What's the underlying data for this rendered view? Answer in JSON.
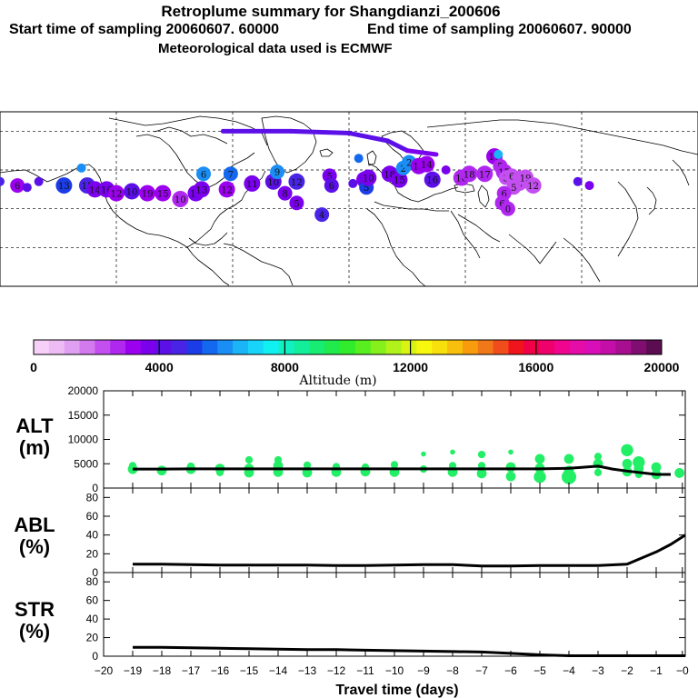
{
  "header": {
    "title": "Retroplume summary for Shangdianzi_200606",
    "start_label": "Start time of sampling 20060607. 60000",
    "end_label": "End time of sampling 20060607. 90000",
    "met_label": "Meteorological data used is ECMWF"
  },
  "colorbar": {
    "label": "Altitude (m)",
    "tick_labels": [
      "0",
      "4000",
      "8000",
      "12000",
      "16000",
      "20000"
    ],
    "min": 0,
    "max": 20000,
    "colors": [
      "#f7d0f7",
      "#eebbf5",
      "#e0a0f2",
      "#d27aee",
      "#c44ff0",
      "#b027f0",
      "#9b00ef",
      "#7a00ee",
      "#5c10e8",
      "#4a24e6",
      "#1c3ce8",
      "#1468f0",
      "#1a8ef5",
      "#1ab4f7",
      "#18d4f8",
      "#10f0f0",
      "#10f0c0",
      "#12ee9a",
      "#18ec72",
      "#20ea4c",
      "#30ec2c",
      "#58ee20",
      "#86f01c",
      "#b0f21a",
      "#d8f414",
      "#f8f80e",
      "#f8e00c",
      "#f8c00c",
      "#f89c0e",
      "#f07818",
      "#f04c1c",
      "#f0141c",
      "#f00048",
      "#f0006c",
      "#f0058e",
      "#e60ca8",
      "#d80eb8",
      "#c40ea8",
      "#a80e90",
      "#800e70",
      "#5c0c50"
    ]
  },
  "map": {
    "description_points": "plume centroids",
    "plume": [
      {
        "lon": -180,
        "lat": 44,
        "label": "",
        "alt": 4500
      },
      {
        "lon": -171,
        "lat": 42,
        "label": "6",
        "alt": 3000
      },
      {
        "lon": -166,
        "lat": 41,
        "label": "",
        "alt": 4200
      },
      {
        "lon": -160,
        "lat": 44,
        "label": "",
        "alt": 4000
      },
      {
        "lon": -147,
        "lat": 42,
        "label": "13",
        "alt": 5000
      },
      {
        "lon": -138,
        "lat": 51,
        "label": "",
        "alt": 6000
      },
      {
        "lon": -135,
        "lat": 42,
        "label": "15",
        "alt": 4500
      },
      {
        "lon": -131,
        "lat": 40,
        "label": "14",
        "alt": 3800
      },
      {
        "lon": -125,
        "lat": 40,
        "label": "16",
        "alt": 3500
      },
      {
        "lon": -120,
        "lat": 38,
        "label": "12",
        "alt": 3200
      },
      {
        "lon": -112,
        "lat": 39,
        "label": "10",
        "alt": 4200
      },
      {
        "lon": -104,
        "lat": 38,
        "label": "19",
        "alt": 3300
      },
      {
        "lon": -96,
        "lat": 38,
        "label": "15",
        "alt": 3400
      },
      {
        "lon": -87,
        "lat": 35,
        "label": "10",
        "alt": 2800
      },
      {
        "lon": -79,
        "lat": 38,
        "label": "14",
        "alt": 3800
      },
      {
        "lon": -75,
        "lat": 48,
        "label": "6",
        "alt": 6000
      },
      {
        "lon": -76,
        "lat": 40,
        "label": "13",
        "alt": 3600
      },
      {
        "lon": -63,
        "lat": 40,
        "label": "12",
        "alt": 3400
      },
      {
        "lon": -61,
        "lat": 48,
        "label": "7",
        "alt": 5800
      },
      {
        "lon": -50,
        "lat": 43,
        "label": "11",
        "alt": 3500
      },
      {
        "lon": -39,
        "lat": 44,
        "label": "10",
        "alt": 4300
      },
      {
        "lon": -37,
        "lat": 49,
        "label": "9",
        "alt": 6200
      },
      {
        "lon": -33,
        "lat": 38,
        "label": "8",
        "alt": 3900
      },
      {
        "lon": -27,
        "lat": 44,
        "label": "12",
        "alt": 4500
      },
      {
        "lon": -27,
        "lat": 33,
        "label": "5",
        "alt": 3800
      },
      {
        "lon": -14,
        "lat": 27,
        "label": "4",
        "alt": 4800
      },
      {
        "lon": -10,
        "lat": 47,
        "label": "5",
        "alt": 3700
      },
      {
        "lon": -9,
        "lat": 42,
        "label": "6",
        "alt": 4000
      },
      {
        "lon": 2,
        "lat": 43,
        "label": "",
        "alt": 4100
      },
      {
        "lon": 5,
        "lat": 56,
        "label": "",
        "alt": 5500
      },
      {
        "lon": 8,
        "lat": 45,
        "label": "18",
        "alt": 3900
      },
      {
        "lon": 9,
        "lat": 41,
        "label": "5",
        "alt": 5200
      },
      {
        "lon": 10,
        "lat": 46,
        "label": "10",
        "alt": 3600
      },
      {
        "lon": 21,
        "lat": 48,
        "label": "18",
        "alt": 3700
      },
      {
        "lon": 26,
        "lat": 45,
        "label": "15",
        "alt": 3500
      },
      {
        "lon": 28,
        "lat": 51,
        "label": "2",
        "alt": 6300
      },
      {
        "lon": 31,
        "lat": 54,
        "label": "2",
        "alt": 6000
      },
      {
        "lon": 36,
        "lat": 52,
        "label": "13",
        "alt": 3400
      },
      {
        "lon": 40,
        "lat": 53,
        "label": "14",
        "alt": 3300
      },
      {
        "lon": 43,
        "lat": 45,
        "label": "16",
        "alt": 4100
      },
      {
        "lon": 50,
        "lat": 50,
        "label": "",
        "alt": 3800
      },
      {
        "lon": 58,
        "lat": 46,
        "label": "16",
        "alt": 2700
      },
      {
        "lon": 62,
        "lat": 48,
        "label": "18",
        "alt": 2600
      },
      {
        "lon": 70,
        "lat": 48,
        "label": "17",
        "alt": 2600
      },
      {
        "lon": 75,
        "lat": 57,
        "label": "17",
        "alt": 3300
      },
      {
        "lon": 77,
        "lat": 58,
        "label": "",
        "alt": 6500
      },
      {
        "lon": 78,
        "lat": 52,
        "label": "5",
        "alt": 2500
      },
      {
        "lon": 80,
        "lat": 49,
        "label": "15",
        "alt": 2700
      },
      {
        "lon": 81,
        "lat": 46,
        "label": "3",
        "alt": 2300
      },
      {
        "lon": 84,
        "lat": 47,
        "label": "6",
        "alt": 2400
      },
      {
        "lon": 88,
        "lat": 43,
        "label": "6",
        "alt": 2200
      },
      {
        "lon": 88,
        "lat": 46,
        "label": "1",
        "alt": 2200
      },
      {
        "lon": 85,
        "lat": 41,
        "label": "5",
        "alt": 2400
      },
      {
        "lon": 91,
        "lat": 46,
        "label": "19",
        "alt": 2100
      },
      {
        "lon": 95,
        "lat": 42,
        "label": "12",
        "alt": 2200
      },
      {
        "lon": 80,
        "lat": 38,
        "label": "6",
        "alt": 2600
      },
      {
        "lon": 79,
        "lat": 33,
        "label": "6",
        "alt": 2800
      },
      {
        "lon": 82,
        "lat": 30,
        "label": "0",
        "alt": 2500
      },
      {
        "lon": 118,
        "lat": 44,
        "label": "",
        "alt": 4000
      },
      {
        "lon": 124,
        "lat": 42,
        "label": "",
        "alt": 3500
      }
    ],
    "track": [
      {
        "lon": -65,
        "lat": 70,
        "alt": 4200
      },
      {
        "lon": -30,
        "lat": 70,
        "alt": 4100
      },
      {
        "lon": 0,
        "lat": 69,
        "alt": 4200
      },
      {
        "lon": 20,
        "lat": 65,
        "alt": 4000
      },
      {
        "lon": 30,
        "lat": 60,
        "alt": 3900
      },
      {
        "lon": 45,
        "lat": 58,
        "alt": 3700
      }
    ]
  },
  "chart_data": [
    {
      "type": "line",
      "panel": "ALT (m)",
      "title": "",
      "ylabel_line1": "ALT",
      "ylabel_line2": "(m)",
      "ylim": [
        0,
        20000
      ],
      "yticks": [
        "0",
        "5000",
        "10000",
        "15000",
        "20000"
      ],
      "xlim": [
        -20,
        0
      ],
      "x": [
        -19,
        -18,
        -17,
        -16,
        -15,
        -14,
        -13,
        -12,
        -11,
        -10,
        -9,
        -8,
        -7,
        -6,
        -5,
        -4,
        -3,
        -2.5,
        -2,
        -1,
        -0.5
      ],
      "series": [
        {
          "name": "mean altitude",
          "values": [
            3900,
            3900,
            3950,
            3950,
            3950,
            3950,
            3950,
            3950,
            3950,
            3950,
            3950,
            3950,
            3950,
            3950,
            3950,
            4050,
            4500,
            3900,
            3500,
            2800,
            2800
          ]
        }
      ],
      "scatter_points": [
        {
          "x": -19,
          "y": 3900,
          "s": 3
        },
        {
          "x": -19,
          "y": 4600,
          "s": 2
        },
        {
          "x": -18,
          "y": 3600,
          "s": 3
        },
        {
          "x": -17,
          "y": 3900,
          "s": 3
        },
        {
          "x": -17,
          "y": 4500,
          "s": 2
        },
        {
          "x": -16,
          "y": 4000,
          "s": 3
        },
        {
          "x": -16,
          "y": 3200,
          "s": 2
        },
        {
          "x": -15,
          "y": 4000,
          "s": 3
        },
        {
          "x": -15,
          "y": 3200,
          "s": 3
        },
        {
          "x": -15,
          "y": 5800,
          "s": 2
        },
        {
          "x": -14,
          "y": 3300,
          "s": 3
        },
        {
          "x": -14,
          "y": 4600,
          "s": 3
        },
        {
          "x": -14,
          "y": 5800,
          "s": 2
        },
        {
          "x": -13,
          "y": 4700,
          "s": 2
        },
        {
          "x": -13,
          "y": 3200,
          "s": 3
        },
        {
          "x": -12,
          "y": 4400,
          "s": 2
        },
        {
          "x": -12,
          "y": 3300,
          "s": 3
        },
        {
          "x": -11,
          "y": 4300,
          "s": 2
        },
        {
          "x": -11,
          "y": 3400,
          "s": 3
        },
        {
          "x": -10,
          "y": 4800,
          "s": 2
        },
        {
          "x": -10,
          "y": 3300,
          "s": 3
        },
        {
          "x": -9,
          "y": 7000,
          "s": 1
        },
        {
          "x": -9,
          "y": 3900,
          "s": 2
        },
        {
          "x": -8,
          "y": 7400,
          "s": 1
        },
        {
          "x": -8,
          "y": 4600,
          "s": 2
        },
        {
          "x": -8,
          "y": 3300,
          "s": 3
        },
        {
          "x": -7,
          "y": 6900,
          "s": 2
        },
        {
          "x": -7,
          "y": 4600,
          "s": 2
        },
        {
          "x": -7,
          "y": 3000,
          "s": 3
        },
        {
          "x": -6,
          "y": 7400,
          "s": 1
        },
        {
          "x": -6,
          "y": 4300,
          "s": 3
        },
        {
          "x": -6,
          "y": 2400,
          "s": 3
        },
        {
          "x": -5,
          "y": 6000,
          "s": 3
        },
        {
          "x": -5,
          "y": 4100,
          "s": 3
        },
        {
          "x": -5,
          "y": 2300,
          "s": 4
        },
        {
          "x": -4,
          "y": 6000,
          "s": 3
        },
        {
          "x": -4,
          "y": 3600,
          "s": 3
        },
        {
          "x": -4,
          "y": 2300,
          "s": 5
        },
        {
          "x": -3,
          "y": 6500,
          "s": 2
        },
        {
          "x": -3,
          "y": 5000,
          "s": 3
        },
        {
          "x": -3,
          "y": 3200,
          "s": 2
        },
        {
          "x": -2,
          "y": 7800,
          "s": 4
        },
        {
          "x": -2,
          "y": 5000,
          "s": 3
        },
        {
          "x": -2,
          "y": 3400,
          "s": 3
        },
        {
          "x": -1.6,
          "y": 5300,
          "s": 4
        },
        {
          "x": -1.6,
          "y": 4000,
          "s": 3
        },
        {
          "x": -1.6,
          "y": 2800,
          "s": 2
        },
        {
          "x": -1,
          "y": 4300,
          "s": 3
        },
        {
          "x": -1,
          "y": 2800,
          "s": 3
        },
        {
          "x": -0.2,
          "y": 3100,
          "s": 3
        }
      ],
      "marker_color": "#22ee66"
    },
    {
      "type": "line",
      "panel": "ABL (%)",
      "ylabel_line1": "ABL",
      "ylabel_line2": "(%)",
      "ylim": [
        0,
        90
      ],
      "yticks": [
        "0",
        "20",
        "40",
        "60",
        "80"
      ],
      "xlim": [
        -20,
        0
      ],
      "x": [
        -19,
        -18,
        -17,
        -16,
        -15,
        -14,
        -13,
        -12,
        -11,
        -10,
        -9,
        -8,
        -7,
        -6,
        -5,
        -4,
        -3,
        -2,
        -1,
        -0.5,
        0
      ],
      "series": [
        {
          "name": "ABL",
          "values": [
            9,
            9,
            8.5,
            8,
            8,
            8,
            8,
            7.5,
            7.5,
            8,
            8.5,
            8.5,
            7,
            7,
            7.5,
            7.5,
            7.5,
            9,
            22,
            30,
            40
          ]
        }
      ]
    },
    {
      "type": "line",
      "panel": "STR (%)",
      "ylabel_line1": "STR",
      "ylabel_line2": "(%)",
      "ylim": [
        0,
        90
      ],
      "yticks": [
        "0",
        "20",
        "40",
        "60",
        "80"
      ],
      "xlim": [
        -20,
        0
      ],
      "x": [
        -19,
        -18,
        -17,
        -16,
        -15,
        -14,
        -13,
        -12,
        -11,
        -10,
        -9,
        -8,
        -7,
        -6,
        -5,
        -4,
        -3,
        -2,
        -1,
        0
      ],
      "series": [
        {
          "name": "STR",
          "values": [
            9.5,
            9.5,
            9,
            8.5,
            8,
            7.5,
            7,
            7,
            6.5,
            6,
            5.5,
            5,
            4.5,
            3,
            1.5,
            0.5,
            0.5,
            0.5,
            0.5,
            0.5
          ]
        }
      ]
    }
  ],
  "xaxis": {
    "label": "Travel time (days)",
    "tick_labels": [
      "−20",
      "−19",
      "−18",
      "−17",
      "−16",
      "−15",
      "−14",
      "−13",
      "−12",
      "−11",
      "−10",
      "−9",
      "−8",
      "−7",
      "−6",
      "−5",
      "−4",
      "−3",
      "−2",
      "−1",
      "−0"
    ],
    "tick_values": [
      -20,
      -19,
      -18,
      -17,
      -16,
      -15,
      -14,
      -13,
      -12,
      -11,
      -10,
      -9,
      -8,
      -7,
      -6,
      -5,
      -4,
      -3,
      -2,
      -1,
      -0.1
    ]
  }
}
